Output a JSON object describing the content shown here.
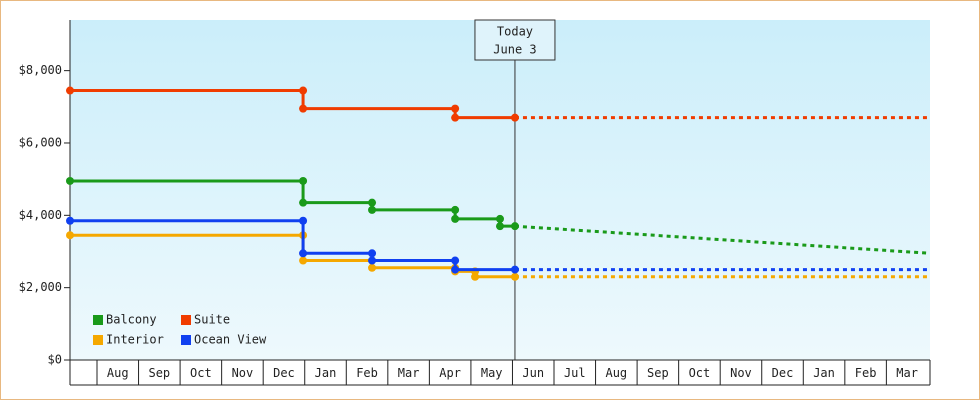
{
  "chart_data": {
    "type": "step-line",
    "annotation": {
      "lines": [
        "Today",
        "June 3"
      ],
      "x": 11.06
    },
    "xlim": [
      0.35,
      21.05
    ],
    "xticks": [
      {
        "value": 1,
        "label": "Aug"
      },
      {
        "value": 2,
        "label": "Sep"
      },
      {
        "value": 3,
        "label": "Oct"
      },
      {
        "value": 4,
        "label": "Nov"
      },
      {
        "value": 5,
        "label": "Dec"
      },
      {
        "value": 6,
        "label": "Jan"
      },
      {
        "value": 7,
        "label": "Feb"
      },
      {
        "value": 8,
        "label": "Mar"
      },
      {
        "value": 9,
        "label": "Apr"
      },
      {
        "value": 10,
        "label": "May"
      },
      {
        "value": 11,
        "label": "Jun"
      },
      {
        "value": 12,
        "label": "Jul"
      },
      {
        "value": 13,
        "label": "Aug"
      },
      {
        "value": 14,
        "label": "Sep"
      },
      {
        "value": 15,
        "label": "Oct"
      },
      {
        "value": 16,
        "label": "Nov"
      },
      {
        "value": 17,
        "label": "Dec"
      },
      {
        "value": 18,
        "label": "Jan"
      },
      {
        "value": 19,
        "label": "Feb"
      },
      {
        "value": 20,
        "label": "Mar"
      }
    ],
    "ylim": [
      0,
      9400
    ],
    "yticks": [
      {
        "value": 0,
        "label": "$0"
      },
      {
        "value": 2000,
        "label": "$2,000"
      },
      {
        "value": 4000,
        "label": "$4,000"
      },
      {
        "value": 6000,
        "label": "$6,000"
      },
      {
        "value": 8000,
        "label": "$8,000"
      }
    ],
    "series": [
      {
        "name": "Balcony",
        "color": "#1a9a1a",
        "x": [
          0.35,
          5.96,
          5.96,
          7.62,
          7.62,
          9.62,
          9.62,
          10.7,
          10.7,
          11.06
        ],
        "values": [
          4950,
          4950,
          4350,
          4350,
          4150,
          4150,
          3900,
          3900,
          3700,
          3700
        ],
        "forecast_x": [
          11.06,
          21.05
        ],
        "forecast_values": [
          3700,
          2950
        ]
      },
      {
        "name": "Suite",
        "color": "#f03c00",
        "x": [
          0.35,
          5.96,
          5.96,
          9.62,
          9.62,
          11.06
        ],
        "values": [
          7450,
          7450,
          6950,
          6950,
          6700,
          6700
        ],
        "forecast_x": [
          11.06,
          21.05
        ],
        "forecast_values": [
          6700,
          6700
        ]
      },
      {
        "name": "Interior",
        "color": "#f5a800",
        "x": [
          0.35,
          5.96,
          5.96,
          7.62,
          7.62,
          9.62,
          9.62,
          10.1,
          10.1,
          11.06
        ],
        "values": [
          3450,
          3450,
          2750,
          2750,
          2550,
          2550,
          2450,
          2450,
          2300,
          2300
        ],
        "forecast_x": [
          11.06,
          21.05
        ],
        "forecast_values": [
          2300,
          2300
        ]
      },
      {
        "name": "Ocean View",
        "color": "#1040f0",
        "x": [
          0.35,
          5.96,
          5.96,
          7.62,
          7.62,
          9.62,
          9.62,
          11.06
        ],
        "values": [
          3850,
          3850,
          2950,
          2950,
          2750,
          2750,
          2500,
          2500
        ],
        "forecast_x": [
          11.06,
          21.05
        ],
        "forecast_values": [
          2500,
          2500
        ]
      }
    ]
  }
}
